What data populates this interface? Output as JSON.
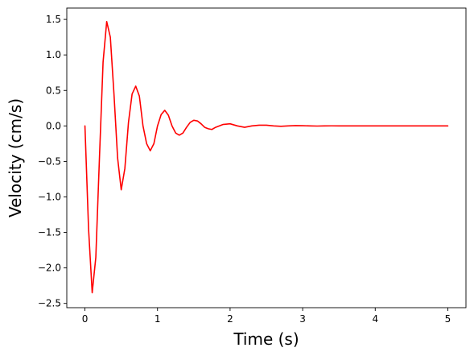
{
  "chart_data": {
    "type": "line",
    "title": "",
    "xlabel": "Time (s)",
    "ylabel": "Velocity (cm/s)",
    "xlim": [
      -0.25,
      5.25
    ],
    "ylim": [
      -2.56,
      1.66
    ],
    "xticks": [
      0,
      1,
      2,
      3,
      4,
      5
    ],
    "xtick_labels": [
      "0",
      "1",
      "2",
      "3",
      "4",
      "5"
    ],
    "yticks": [
      -2.5,
      -2.0,
      -1.5,
      -1.0,
      -0.5,
      0.0,
      0.5,
      1.0,
      1.5
    ],
    "ytick_labels": [
      "−2.5",
      "−2.0",
      "−1.5",
      "−1.0",
      "−0.5",
      "0.0",
      "0.5",
      "1.0",
      "1.5"
    ],
    "grid": false,
    "legend": "none",
    "series": [
      {
        "color": "#ff0000",
        "x": [
          0.0,
          0.05,
          0.1,
          0.15,
          0.2,
          0.25,
          0.3,
          0.35,
          0.4,
          0.45,
          0.5,
          0.55,
          0.6,
          0.65,
          0.7,
          0.75,
          0.8,
          0.85,
          0.9,
          0.95,
          1.0,
          1.05,
          1.1,
          1.15,
          1.2,
          1.25,
          1.3,
          1.35,
          1.4,
          1.45,
          1.5,
          1.55,
          1.6,
          1.65,
          1.7,
          1.75,
          1.8,
          1.9,
          2.0,
          2.1,
          2.2,
          2.3,
          2.4,
          2.5,
          2.6,
          2.7,
          2.8,
          2.9,
          3.0,
          3.1,
          3.2,
          3.3,
          3.4,
          3.5,
          3.75,
          4.0,
          4.5,
          5.0
        ],
        "y": [
          0.0,
          -1.45,
          -2.35,
          -1.85,
          -0.45,
          0.9,
          1.47,
          1.25,
          0.45,
          -0.45,
          -0.9,
          -0.6,
          0.05,
          0.45,
          0.56,
          0.42,
          0.0,
          -0.25,
          -0.35,
          -0.25,
          0.0,
          0.16,
          0.22,
          0.15,
          0.0,
          -0.1,
          -0.13,
          -0.1,
          -0.02,
          0.05,
          0.08,
          0.07,
          0.03,
          -0.02,
          -0.04,
          -0.05,
          -0.02,
          0.02,
          0.03,
          0.0,
          -0.02,
          0.0,
          0.01,
          0.01,
          0.0,
          -0.005,
          0.0,
          0.005,
          0.003,
          0.0,
          -0.002,
          0.0,
          0.001,
          0.0,
          0.0,
          0.0,
          0.0,
          0.0
        ]
      }
    ]
  }
}
